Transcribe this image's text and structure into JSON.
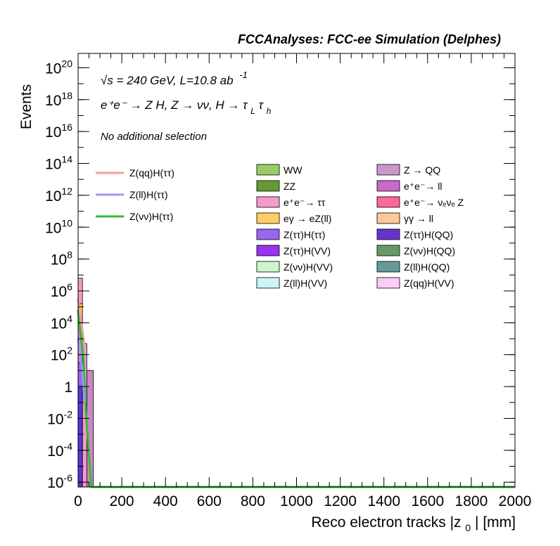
{
  "chart_data": {
    "type": "bar",
    "title": "FCCAnalyses: FCC-ee Simulation (Delphes)",
    "annotations": {
      "energy": "√s = 240 GeV, L=10.8 ab",
      "energy_sup": "-1",
      "process": "e⁺e⁻ → Z H, Z → νν, H → τ",
      "process_sub1": "L",
      "process_tau2": "τ",
      "process_sub2": "h",
      "selection": "No additional selection"
    },
    "xlabel": "Reco electron tracks |z",
    "xlabel_sub": "0",
    "xlabel_suffix": "| [mm]",
    "ylabel": "Events",
    "xlim": [
      0,
      2000
    ],
    "ylim_log10": [
      -6.3,
      20.9
    ],
    "log_y": true,
    "x_ticks": [
      "0",
      "200",
      "400",
      "600",
      "800",
      "1000",
      "1200",
      "1400",
      "1600",
      "1800",
      "2000"
    ],
    "y_ticks": [
      {
        "base": "10",
        "exp": "20",
        "log": 20
      },
      {
        "base": "10",
        "exp": "18",
        "log": 18
      },
      {
        "base": "10",
        "exp": "16",
        "log": 16
      },
      {
        "base": "10",
        "exp": "14",
        "log": 14
      },
      {
        "base": "10",
        "exp": "12",
        "log": 12
      },
      {
        "base": "10",
        "exp": "10",
        "log": 10
      },
      {
        "base": "10",
        "exp": "8",
        "log": 8
      },
      {
        "base": "10",
        "exp": "6",
        "log": 6
      },
      {
        "base": "10",
        "exp": "4",
        "log": 4
      },
      {
        "base": "10",
        "exp": "2",
        "log": 2
      },
      {
        "base": "1",
        "exp": "",
        "log": 0
      },
      {
        "base": "10",
        "exp": "-2",
        "log": -2
      },
      {
        "base": "10",
        "exp": "-4",
        "log": -4
      },
      {
        "base": "10",
        "exp": "-6",
        "log": -6
      }
    ],
    "stack_bins": [
      {
        "x0": 0,
        "x1": 20,
        "segments": [
          {
            "color": "#5a35d6",
            "log_top": 0.0
          },
          {
            "color": "#9a5ff5",
            "log_top": 1.5
          },
          {
            "color": "#c889c6",
            "log_top": 4.3
          },
          {
            "color": "#ffc15b",
            "log_top": 5.2
          },
          {
            "color": "#f49ac8",
            "log_top": 6.8
          }
        ]
      },
      {
        "x0": 20,
        "x1": 40,
        "segments": [
          {
            "color": "#f49ac8",
            "log_top": 2.7
          }
        ]
      },
      {
        "x0": 40,
        "x1": 70,
        "segments": [
          {
            "color": "#c889c6",
            "log_top": 1.0
          }
        ]
      }
    ],
    "signal_series": [
      {
        "name": "Z(νν)H(ττ)",
        "color": "#33bb33",
        "x": [
          0,
          10,
          25,
          35,
          60,
          2000
        ],
        "log_y": [
          4.8,
          3.5,
          1.8,
          -1.5,
          -6.3,
          -6.3
        ]
      },
      {
        "name": "Z(qq)H(ττ)",
        "color": "#f59c9c",
        "x": [
          0,
          15,
          30
        ],
        "log_y": [
          5.5,
          4.0,
          2.5
        ]
      },
      {
        "name": "Z(ll)H(ττ)",
        "color": "#9a9af5",
        "x": [
          0,
          15,
          30
        ],
        "log_y": [
          3.0,
          1.5,
          -1.0
        ]
      }
    ],
    "legend_signals": [
      {
        "label": "Z(qq)H(ττ)",
        "color": "#f59c9c"
      },
      {
        "label": "Z(ll)H(ττ)",
        "color": "#9a9af5"
      },
      {
        "label": "Z(νν)H(ττ)",
        "color": "#33bb33"
      }
    ],
    "legend_backgrounds": [
      {
        "label": "WW",
        "color": "#99cc66"
      },
      {
        "label": "Z → QQ",
        "color": "#c899c8"
      },
      {
        "label": "ZZ",
        "color": "#669933"
      },
      {
        "label": "e⁺e⁻→ ll",
        "color": "#cc66cc"
      },
      {
        "label": "e⁺e⁻→ ττ",
        "color": "#f59cc8"
      },
      {
        "label": "e⁺e⁻→ νₑνₑ Z",
        "color": "#ff6699"
      },
      {
        "label": "eγ → eZ(ll)",
        "color": "#ffcc66"
      },
      {
        "label": "γγ → ll",
        "color": "#ffc899"
      },
      {
        "label": "Z(ττ)H(ττ)",
        "color": "#9966ee"
      },
      {
        "label": "Z(ττ)H(QQ)",
        "color": "#6633cc"
      },
      {
        "label": "Z(ττ)H(VV)",
        "color": "#9933ee"
      },
      {
        "label": "Z(νν)H(QQ)",
        "color": "#669966"
      },
      {
        "label": "Z(νν)H(VV)",
        "color": "#ccf5cc"
      },
      {
        "label": "Z(ll)H(QQ)",
        "color": "#669999"
      },
      {
        "label": "Z(ll)H(VV)",
        "color": "#ccf5f5"
      },
      {
        "label": "Z(qq)H(VV)",
        "color": "#ffccf5"
      }
    ]
  }
}
